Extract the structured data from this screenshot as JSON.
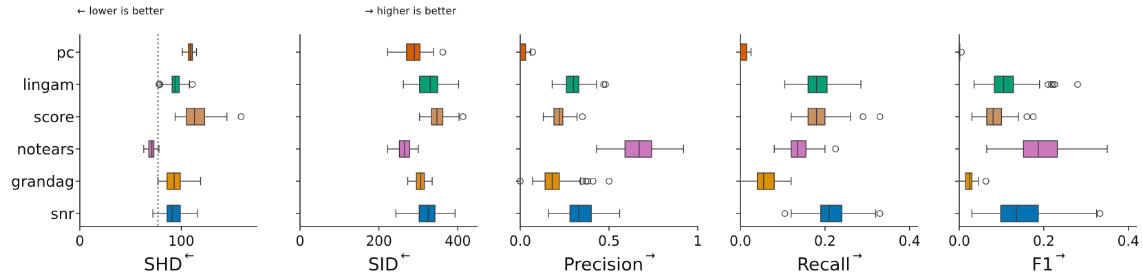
{
  "annotations": {
    "left": "← lower is better",
    "right": "→ higher is better"
  },
  "chart_data": {
    "type": "boxplot",
    "orientation": "horizontal",
    "categories": [
      "pc",
      "lingam",
      "score",
      "notears",
      "grandag",
      "snr"
    ],
    "colors": {
      "pc": "#d55e00",
      "lingam": "#029e73",
      "score": "#ca9161",
      "notears": "#cc78bc",
      "grandag": "#de8f05",
      "snr": "#0173b2"
    },
    "panels": [
      {
        "metric": "SHD",
        "arrow": "←",
        "xlim": [
          0,
          175
        ],
        "xticks": [
          0,
          100
        ],
        "reference_line": 77,
        "boxes": [
          {
            "category": "pc",
            "whislo": 101,
            "q1": 107,
            "median": 109,
            "q3": 111,
            "whishi": 115,
            "fliers": []
          },
          {
            "category": "lingam",
            "whislo": 79,
            "q1": 91,
            "median": 94,
            "q3": 98,
            "whishi": 108,
            "fliers": [
              78,
              79,
              111
            ]
          },
          {
            "category": "score",
            "whislo": 94,
            "q1": 105,
            "median": 113,
            "q3": 123,
            "whishi": 145,
            "fliers": [
              159
            ]
          },
          {
            "category": "notears",
            "whislo": 63,
            "q1": 68,
            "median": 71,
            "q3": 73,
            "whishi": 78,
            "fliers": []
          },
          {
            "category": "grandag",
            "whislo": 77,
            "q1": 86,
            "median": 93,
            "q3": 99,
            "whishi": 119,
            "fliers": []
          },
          {
            "category": "snr",
            "whislo": 72,
            "q1": 86,
            "median": 91,
            "q3": 99,
            "whishi": 116,
            "fliers": []
          }
        ]
      },
      {
        "metric": "SID",
        "arrow": "←",
        "xlim": [
          0,
          450
        ],
        "xticks": [
          0,
          200,
          400
        ],
        "boxes": [
          {
            "category": "pc",
            "whislo": 222,
            "q1": 270,
            "median": 290,
            "q3": 304,
            "whishi": 338,
            "fliers": [
              362
            ]
          },
          {
            "category": "lingam",
            "whislo": 262,
            "q1": 303,
            "median": 330,
            "q3": 349,
            "whishi": 402,
            "fliers": []
          },
          {
            "category": "score",
            "whislo": 303,
            "q1": 333,
            "median": 347,
            "q3": 362,
            "whishi": 403,
            "fliers": [
              413
            ]
          },
          {
            "category": "notears",
            "whislo": 222,
            "q1": 252,
            "median": 265,
            "q3": 278,
            "whishi": 300,
            "fliers": []
          },
          {
            "category": "grandag",
            "whislo": 273,
            "q1": 295,
            "median": 306,
            "q3": 315,
            "whishi": 335,
            "fliers": []
          },
          {
            "category": "snr",
            "whislo": 243,
            "q1": 302,
            "median": 325,
            "q3": 342,
            "whishi": 393,
            "fliers": []
          }
        ]
      },
      {
        "metric": "Precision",
        "arrow": "→",
        "xlim": [
          0,
          1.0
        ],
        "xticks": [
          0.0,
          0.5,
          1.0
        ],
        "boxes": [
          {
            "category": "pc",
            "whislo": 0.0,
            "q1": 0.0,
            "median": 0.0,
            "q3": 0.03,
            "whishi": 0.06,
            "fliers": [
              0.07
            ]
          },
          {
            "category": "lingam",
            "whislo": 0.18,
            "q1": 0.26,
            "median": 0.3,
            "q3": 0.33,
            "whishi": 0.43,
            "fliers": [
              0.47,
              0.48
            ]
          },
          {
            "category": "score",
            "whislo": 0.13,
            "q1": 0.19,
            "median": 0.22,
            "q3": 0.24,
            "whishi": 0.32,
            "fliers": [
              0.35
            ]
          },
          {
            "category": "notears",
            "whislo": 0.43,
            "q1": 0.59,
            "median": 0.67,
            "q3": 0.74,
            "whishi": 0.92,
            "fliers": []
          },
          {
            "category": "grandag",
            "whislo": 0.07,
            "q1": 0.14,
            "median": 0.18,
            "q3": 0.22,
            "whishi": 0.34,
            "fliers": [
              0.0,
              0.35,
              0.37,
              0.38,
              0.41,
              0.5
            ]
          },
          {
            "category": "snr",
            "whislo": 0.16,
            "q1": 0.28,
            "median": 0.33,
            "q3": 0.4,
            "whishi": 0.56,
            "fliers": []
          }
        ]
      },
      {
        "metric": "Recall",
        "arrow": "→",
        "xlim": [
          0,
          0.42
        ],
        "xticks": [
          0.0,
          0.2,
          0.4
        ],
        "boxes": [
          {
            "category": "pc",
            "whislo": 0.0,
            "q1": 0.0,
            "median": 0.0,
            "q3": 0.015,
            "whishi": 0.025,
            "fliers": []
          },
          {
            "category": "lingam",
            "whislo": 0.105,
            "q1": 0.16,
            "median": 0.18,
            "q3": 0.205,
            "whishi": 0.285,
            "fliers": []
          },
          {
            "category": "score",
            "whislo": 0.12,
            "q1": 0.16,
            "median": 0.18,
            "q3": 0.2,
            "whishi": 0.26,
            "fliers": [
              0.29,
              0.33
            ]
          },
          {
            "category": "notears",
            "whislo": 0.08,
            "q1": 0.12,
            "median": 0.135,
            "q3": 0.155,
            "whishi": 0.2,
            "fliers": [
              0.225
            ]
          },
          {
            "category": "grandag",
            "whislo": 0.0,
            "q1": 0.04,
            "median": 0.055,
            "q3": 0.08,
            "whishi": 0.12,
            "fliers": []
          },
          {
            "category": "snr",
            "whislo": 0.12,
            "q1": 0.19,
            "median": 0.21,
            "q3": 0.24,
            "whishi": 0.32,
            "fliers": [
              0.105,
              0.33
            ]
          }
        ]
      },
      {
        "metric": "F1",
        "arrow": "→",
        "xlim": [
          0,
          0.42
        ],
        "xticks": [
          0.0,
          0.2,
          0.4
        ],
        "boxes": [
          {
            "category": "pc",
            "whislo": 0.0,
            "q1": 0.0,
            "median": 0.0,
            "q3": 0.0,
            "whishi": 0.0,
            "fliers": [
              0.005
            ]
          },
          {
            "category": "lingam",
            "whislo": 0.035,
            "q1": 0.083,
            "median": 0.105,
            "q3": 0.128,
            "whishi": 0.19,
            "fliers": [
              0.21,
              0.218,
              0.222,
              0.226,
              0.28
            ]
          },
          {
            "category": "score",
            "whislo": 0.03,
            "q1": 0.065,
            "median": 0.08,
            "q3": 0.1,
            "whishi": 0.14,
            "fliers": [
              0.16,
              0.175
            ]
          },
          {
            "category": "notears",
            "whislo": 0.065,
            "q1": 0.152,
            "median": 0.187,
            "q3": 0.232,
            "whishi": 0.35,
            "fliers": []
          },
          {
            "category": "grandag",
            "whislo": 0.0,
            "q1": 0.015,
            "median": 0.025,
            "q3": 0.03,
            "whishi": 0.045,
            "fliers": [
              0.063
            ]
          },
          {
            "category": "snr",
            "whislo": 0.03,
            "q1": 0.098,
            "median": 0.135,
            "q3": 0.187,
            "whishi": 0.325,
            "fliers": [
              0.333
            ]
          }
        ]
      }
    ]
  }
}
